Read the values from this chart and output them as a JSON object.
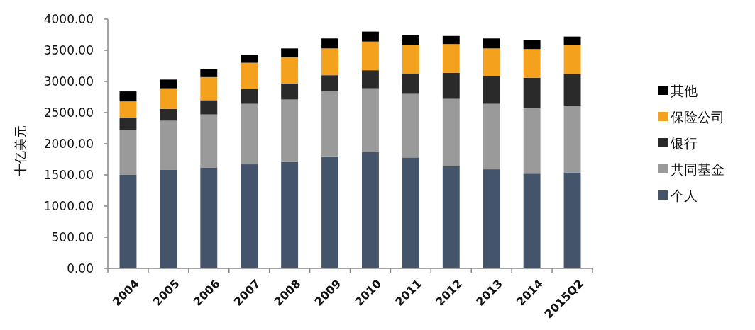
{
  "chart_data": {
    "type": "bar",
    "stacked": true,
    "ylabel": "十亿美元",
    "categories": [
      "2004",
      "2005",
      "2006",
      "2007",
      "2008",
      "2009",
      "2010",
      "2011",
      "2012",
      "2013",
      "2014",
      "2015Q2"
    ],
    "series": [
      {
        "name": "个人",
        "color": "#44546a",
        "values": [
          1500,
          1580,
          1620,
          1670,
          1710,
          1800,
          1870,
          1780,
          1640,
          1590,
          1520,
          1540
        ]
      },
      {
        "name": "共同基金",
        "color": "#9a9a9a",
        "values": [
          720,
          790,
          850,
          970,
          1000,
          1040,
          1020,
          1020,
          1080,
          1050,
          1050,
          1070
        ]
      },
      {
        "name": "银行",
        "color": "#2a2a2a",
        "values": [
          200,
          190,
          230,
          240,
          260,
          260,
          290,
          330,
          420,
          440,
          490,
          510
        ]
      },
      {
        "name": "保险公司",
        "color": "#f4a11d",
        "values": [
          260,
          330,
          370,
          420,
          420,
          430,
          460,
          460,
          460,
          450,
          460,
          460
        ]
      },
      {
        "name": "其他",
        "color": "#000000",
        "values": [
          160,
          140,
          130,
          130,
          140,
          160,
          160,
          150,
          130,
          160,
          150,
          140
        ]
      }
    ],
    "ylim": [
      0,
      4000
    ],
    "yticks": [
      {
        "value": 0,
        "label": "0.00"
      },
      {
        "value": 500,
        "label": "500.00"
      },
      {
        "value": 1000,
        "label": "1000.00"
      },
      {
        "value": 1500,
        "label": "1500.00"
      },
      {
        "value": 2000,
        "label": "2000.00"
      },
      {
        "value": 2500,
        "label": "2500.00"
      },
      {
        "value": 3000,
        "label": "3000.00"
      },
      {
        "value": 3500,
        "label": "3500.00"
      },
      {
        "value": 4000,
        "label": "4000.00"
      }
    ],
    "grid": false,
    "legend": "right"
  }
}
